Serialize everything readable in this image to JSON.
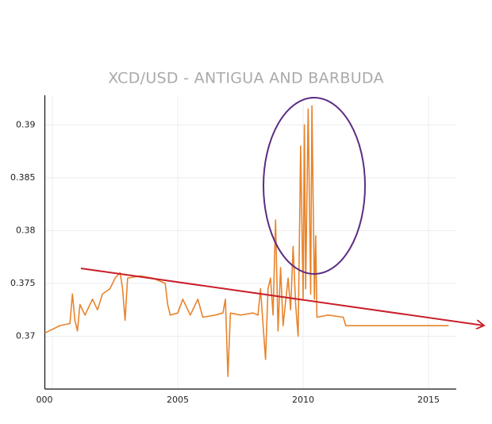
{
  "chart_data": {
    "type": "line",
    "title": "XCD/USD - ANTIGUA AND BARBUDA",
    "x": [
      1999.7,
      2000.3,
      2000.7,
      2000.8,
      2000.9,
      2001.0,
      2001.1,
      2001.3,
      2001.5,
      2001.6,
      2001.8,
      2002.0,
      2002.3,
      2002.5,
      2002.7,
      2002.8,
      2002.9,
      2003.0,
      2003.5,
      2004.0,
      2004.5,
      2004.6,
      2004.7,
      2005.0,
      2005.2,
      2005.5,
      2005.8,
      2006.0,
      2006.5,
      2006.8,
      2006.9,
      2007.0,
      2007.1,
      2007.5,
      2008.0,
      2008.2,
      2008.3,
      2008.5,
      2008.6,
      2008.7,
      2008.8,
      2008.9,
      2009.0,
      2009.1,
      2009.2,
      2009.4,
      2009.5,
      2009.6,
      2009.7,
      2009.8,
      2009.9,
      2010.0,
      2010.05,
      2010.1,
      2010.2,
      2010.3,
      2010.35,
      2010.45,
      2010.5,
      2010.55,
      2011.0,
      2011.6,
      2011.7,
      2015.8
    ],
    "values": [
      0.3703,
      0.371,
      0.3712,
      0.374,
      0.3715,
      0.3705,
      0.373,
      0.372,
      0.373,
      0.3735,
      0.3725,
      0.374,
      0.3745,
      0.3755,
      0.376,
      0.3745,
      0.3715,
      0.3755,
      0.3757,
      0.3755,
      0.375,
      0.373,
      0.372,
      0.3722,
      0.3735,
      0.372,
      0.3735,
      0.3718,
      0.372,
      0.3722,
      0.3735,
      0.3662,
      0.3722,
      0.372,
      0.3722,
      0.372,
      0.3745,
      0.3678,
      0.3745,
      0.3755,
      0.372,
      0.381,
      0.3705,
      0.3765,
      0.371,
      0.3755,
      0.3725,
      0.3785,
      0.373,
      0.37,
      0.388,
      0.3735,
      0.39,
      0.3745,
      0.3915,
      0.374,
      0.3918,
      0.3735,
      0.3795,
      0.3718,
      0.372,
      0.3718,
      0.371,
      0.371
    ],
    "color": "#e8842c",
    "xlim": [
      1999.7,
      2016.1
    ],
    "xticks": [
      {
        "value": 2000,
        "label": "000"
      },
      2005,
      2010,
      2015
    ],
    "ylim": [
      0.365,
      0.3928
    ],
    "yticks": [
      0.37,
      0.375,
      0.38,
      0.385,
      0.39
    ],
    "grid": true
  }
}
